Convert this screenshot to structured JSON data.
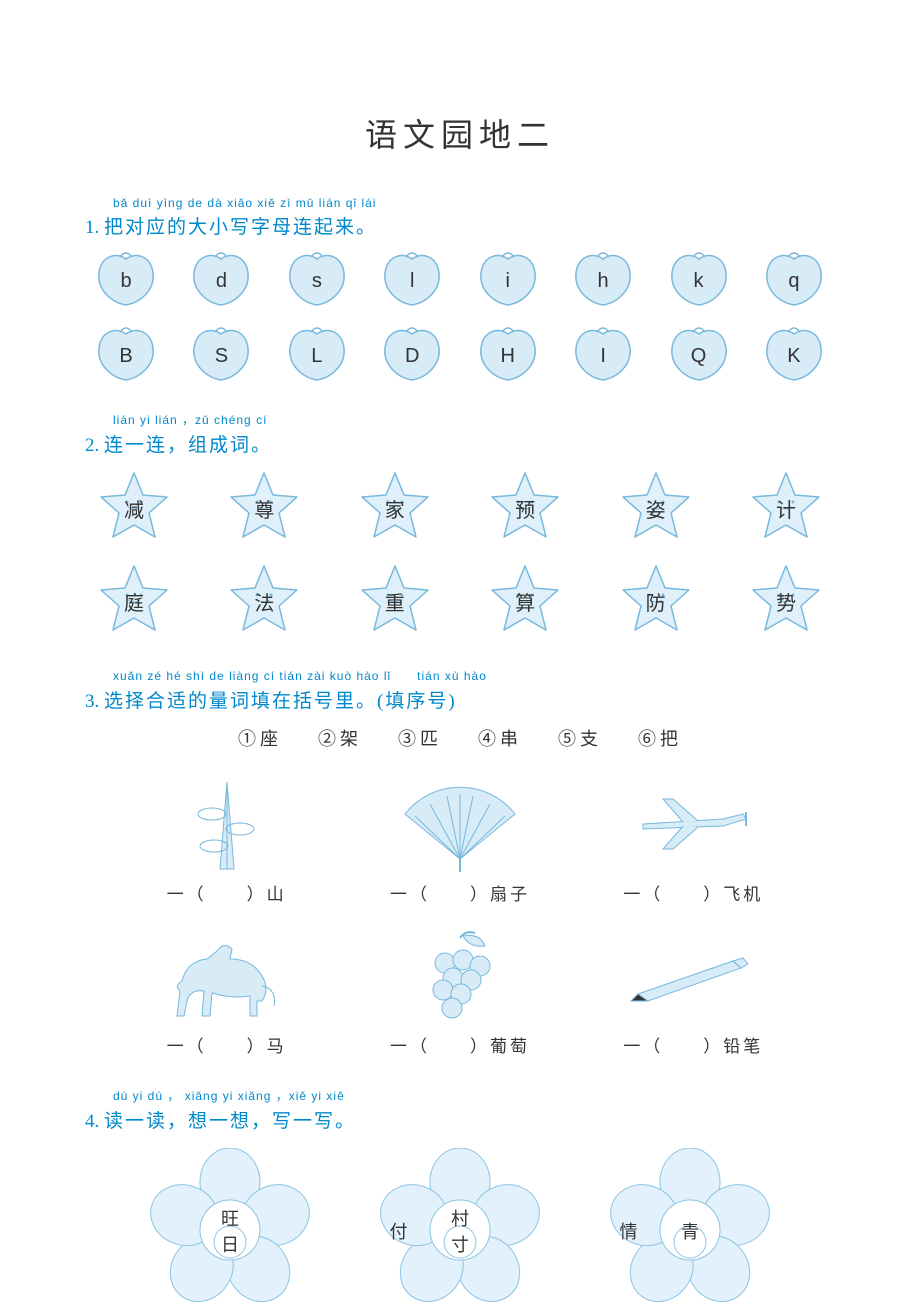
{
  "colors": {
    "accent": "#0088cc",
    "peach_fill": "#d8ecf7",
    "peach_stroke": "#77b8dc",
    "star_fill": "#dff0fa",
    "star_stroke": "#77b8dc",
    "flower_fill": "#e2f1fb",
    "flower_stroke": "#8cc4e2",
    "text": "#333333",
    "bg": "#ffffff"
  },
  "title": "语文园地二",
  "q1": {
    "number": "1.",
    "pinyin": "bǎ duì yìng de dà xiǎo xiě zì mǔ lián qǐ lái",
    "heading": "把对应的大小写字母连起来。",
    "row1": [
      "b",
      "d",
      "s",
      "l",
      "i",
      "h",
      "k",
      "q"
    ],
    "row2": [
      "B",
      "S",
      "L",
      "D",
      "H",
      "I",
      "Q",
      "K"
    ]
  },
  "q2": {
    "number": "2.",
    "pinyin": "lián yi lián ，zǔ chéng cí",
    "heading": "连一连，组成词。",
    "row1": [
      "减",
      "尊",
      "家",
      "预",
      "姿",
      "计"
    ],
    "row2": [
      "庭",
      "法",
      "重",
      "算",
      "防",
      "势"
    ]
  },
  "q3": {
    "number": "3.",
    "pinyin_a": "xuǎn zé hé shì de liàng cí tián zài kuò hào lǐ",
    "pinyin_b": "tián xù hào",
    "heading": "选择合适的量词填在括号里。(填序号)",
    "options": [
      {
        "n": "①",
        "t": "座"
      },
      {
        "n": "②",
        "t": "架"
      },
      {
        "n": "③",
        "t": "匹"
      },
      {
        "n": "④",
        "t": "串"
      },
      {
        "n": "⑤",
        "t": "支"
      },
      {
        "n": "⑥",
        "t": "把"
      }
    ],
    "items": [
      {
        "caption": "一（　　）山",
        "icon": "mountain"
      },
      {
        "caption": "一（　　）扇子",
        "icon": "fan"
      },
      {
        "caption": "一（　　）飞机",
        "icon": "plane"
      },
      {
        "caption": "一（　　）马",
        "icon": "horse"
      },
      {
        "caption": "一（　　）葡萄",
        "icon": "grapes"
      },
      {
        "caption": "一（　　）铅笔",
        "icon": "pencil"
      }
    ]
  },
  "q4": {
    "number": "4.",
    "pinyin": "dú yi dú ，  xiǎng yi xiǎng ，xiě yi xiě",
    "heading": "读一读，想一想，写一写。",
    "flowers": [
      {
        "top": "旺",
        "bot": "日",
        "left": ""
      },
      {
        "top": "村",
        "bot": "寸",
        "left": "付"
      },
      {
        "top": "",
        "bot": "青",
        "left": "情"
      }
    ]
  }
}
